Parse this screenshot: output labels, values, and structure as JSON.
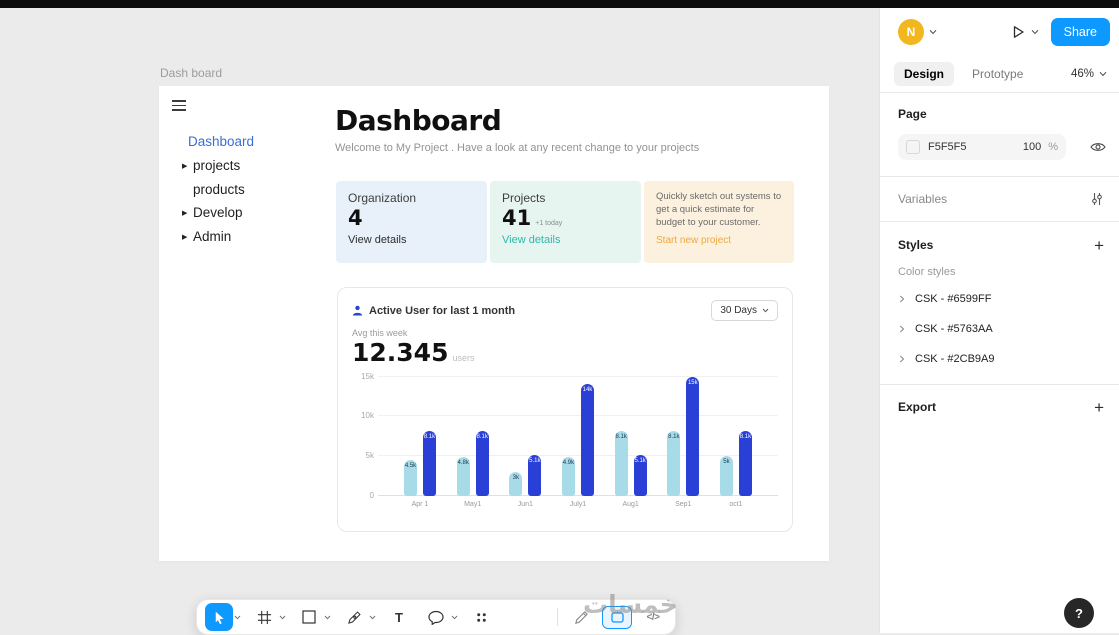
{
  "right_panel": {
    "avatar_initial": "N",
    "share_label": "Share",
    "design_tab": "Design",
    "prototype_tab": "Prototype",
    "zoom_level": "46%",
    "page_section": {
      "label": "Page",
      "color_hex": "F5F5F5",
      "opacity_value": "100",
      "opacity_unit": "%"
    },
    "variables_label": "Variables",
    "styles_label": "Styles",
    "color_styles_label": "Color styles",
    "color_styles": [
      {
        "label": "CSK - #6599FF"
      },
      {
        "label": "CSK - #5763AA"
      },
      {
        "label": "CSK - #2CB9A9"
      }
    ],
    "export_label": "Export",
    "help_label": "?"
  },
  "canvas": {
    "frame_label": "Dash board",
    "nav_items": [
      {
        "label": "Dashboard",
        "active": true,
        "expandable": false
      },
      {
        "label": "projects",
        "active": false,
        "expandable": true
      },
      {
        "label": "products",
        "active": false,
        "expandable": false
      },
      {
        "label": "Develop",
        "active": false,
        "expandable": true
      },
      {
        "label": "Admin",
        "active": false,
        "expandable": true
      }
    ],
    "page_title": "Dashboard",
    "page_subtitle": "Welcome to My Project . Have a look at any recent change to your projects",
    "stat_cards": [
      {
        "title": "Organization",
        "value": "4",
        "link": "View details",
        "bg": "#E8F1FA"
      },
      {
        "title": "Projects",
        "value": "41",
        "note": "+1 today",
        "link": "View details",
        "bg": "#E7F5F1",
        "link_color": "#2CB9A9"
      },
      {
        "text": "Quickly sketch out systems to get a quick estimate for budget to your customer.",
        "link": "Start new project",
        "bg": "#FCF1DE",
        "link_color": "#F0A83D"
      }
    ],
    "chart_card": {
      "title": "Active  User for last 1 month",
      "range_label": "30 Days",
      "avg_label": "Avg this week",
      "avg_value": "12.345",
      "avg_unit": "users"
    }
  },
  "chart_data": {
    "type": "bar",
    "title": "Active User for last 1 month",
    "categories": [
      "Apr 1",
      "May1",
      "Jun1",
      "July1",
      "Aug1",
      "Sep1",
      "oct1"
    ],
    "series": [
      {
        "name": "light",
        "color": "#A7DBE8",
        "values": [
          4500,
          4800,
          3000,
          4900,
          8100,
          8100,
          5000
        ],
        "labels": [
          "4.5k",
          "4.8k",
          "3k",
          "4.9k",
          "8.1k",
          "8.1k",
          "5k"
        ]
      },
      {
        "name": "dark",
        "color": "#2A3FD6",
        "values": [
          8100,
          8100,
          5100,
          14000,
          5100,
          15000,
          8100
        ],
        "labels": [
          "8.1k",
          "8.1k",
          "5.1k",
          "14k",
          "5.1k",
          "15k",
          "8.1k"
        ]
      }
    ],
    "yticks": [
      {
        "label": "15k",
        "value": 15000
      },
      {
        "label": "10k",
        "value": 10000
      },
      {
        "label": "5k",
        "value": 5000
      },
      {
        "label": "0",
        "value": 0
      }
    ],
    "ylim": [
      0,
      15000
    ],
    "grid": true,
    "legend": "none"
  },
  "toolbar": {
    "tools": [
      "move-tool",
      "frame-tool",
      "rectangle-tool",
      "pen-tool",
      "text-tool",
      "comment-tool",
      "actions-tool",
      "pencil-tool",
      "dev-mode-toggle",
      "code-tool"
    ],
    "active_tool": "move-tool",
    "accent_color": "#0D99FF",
    "text_tool_glyph": "T",
    "code_tool_glyph": "</>"
  },
  "watermark": "خمسات"
}
